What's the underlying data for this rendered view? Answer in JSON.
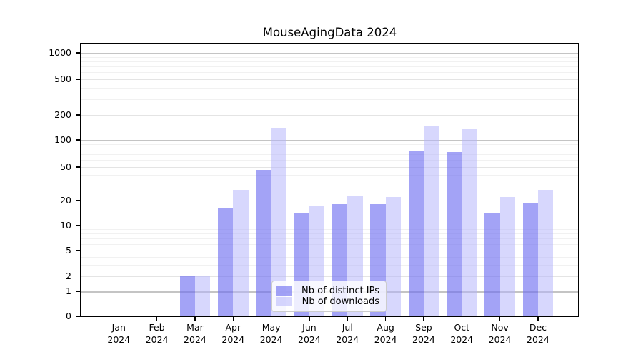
{
  "chart_data": {
    "type": "bar",
    "title": "MouseAgingData 2024",
    "categories": [
      "Jan",
      "Feb",
      "Mar",
      "Apr",
      "May",
      "Jun",
      "Jul",
      "Aug",
      "Sep",
      "Oct",
      "Nov",
      "Dec"
    ],
    "category_year": "2024",
    "series": [
      {
        "name": "Nb of distinct IPs",
        "color": "rgba(106,106,240,0.62)",
        "values": [
          0,
          0,
          2,
          16,
          46,
          14,
          18,
          18,
          76,
          74,
          14,
          19
        ]
      },
      {
        "name": "Nb of downloads",
        "color": "rgba(178,178,252,0.52)",
        "values": [
          0,
          0,
          2,
          27,
          139,
          17,
          23,
          22,
          148,
          138,
          22,
          27
        ]
      }
    ],
    "xlabel": "",
    "ylabel": "",
    "yscale": "symlog",
    "yticks": [
      0,
      1,
      2,
      5,
      10,
      20,
      50,
      100,
      200,
      500,
      1000
    ],
    "ylim": [
      0,
      1250
    ],
    "grid": "horizontal only; light gray, darker lines at powers of ten",
    "legend_position": "inside plot, lower center"
  }
}
